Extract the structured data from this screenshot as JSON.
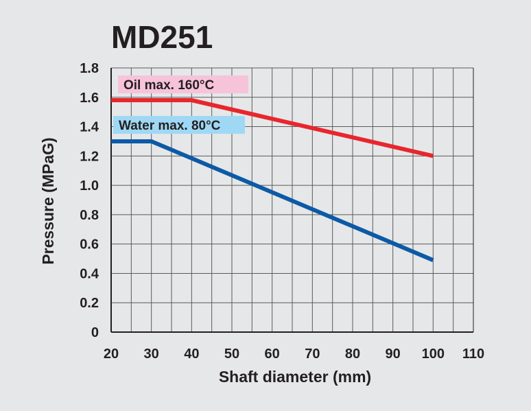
{
  "chart_data": {
    "type": "line",
    "title": "MD251",
    "xlabel": "Shaft diameter (mm)",
    "ylabel": "Pressure (MPaG)",
    "xlim": [
      20,
      110
    ],
    "ylim": [
      0,
      1.8
    ],
    "x_ticks": [
      "20",
      "30",
      "40",
      "50",
      "60",
      "70",
      "80",
      "90",
      "100",
      "110"
    ],
    "y_ticks": [
      "0",
      "0.2",
      "0.4",
      "0.6",
      "0.8",
      "1.0",
      "1.2",
      "1.4",
      "1.6",
      "1.8"
    ],
    "grid": true,
    "series": [
      {
        "name": "Oil  max. 160°C",
        "color": "#e8262d",
        "label_bg": "#f6c3d9",
        "x": [
          20,
          40,
          100
        ],
        "y": [
          1.58,
          1.58,
          1.2
        ]
      },
      {
        "name": "Water  max. 80°C",
        "color": "#0c5aa6",
        "label_bg": "#9fd8f4",
        "x": [
          20,
          30,
          100
        ],
        "y": [
          1.3,
          1.3,
          0.49
        ]
      }
    ]
  }
}
